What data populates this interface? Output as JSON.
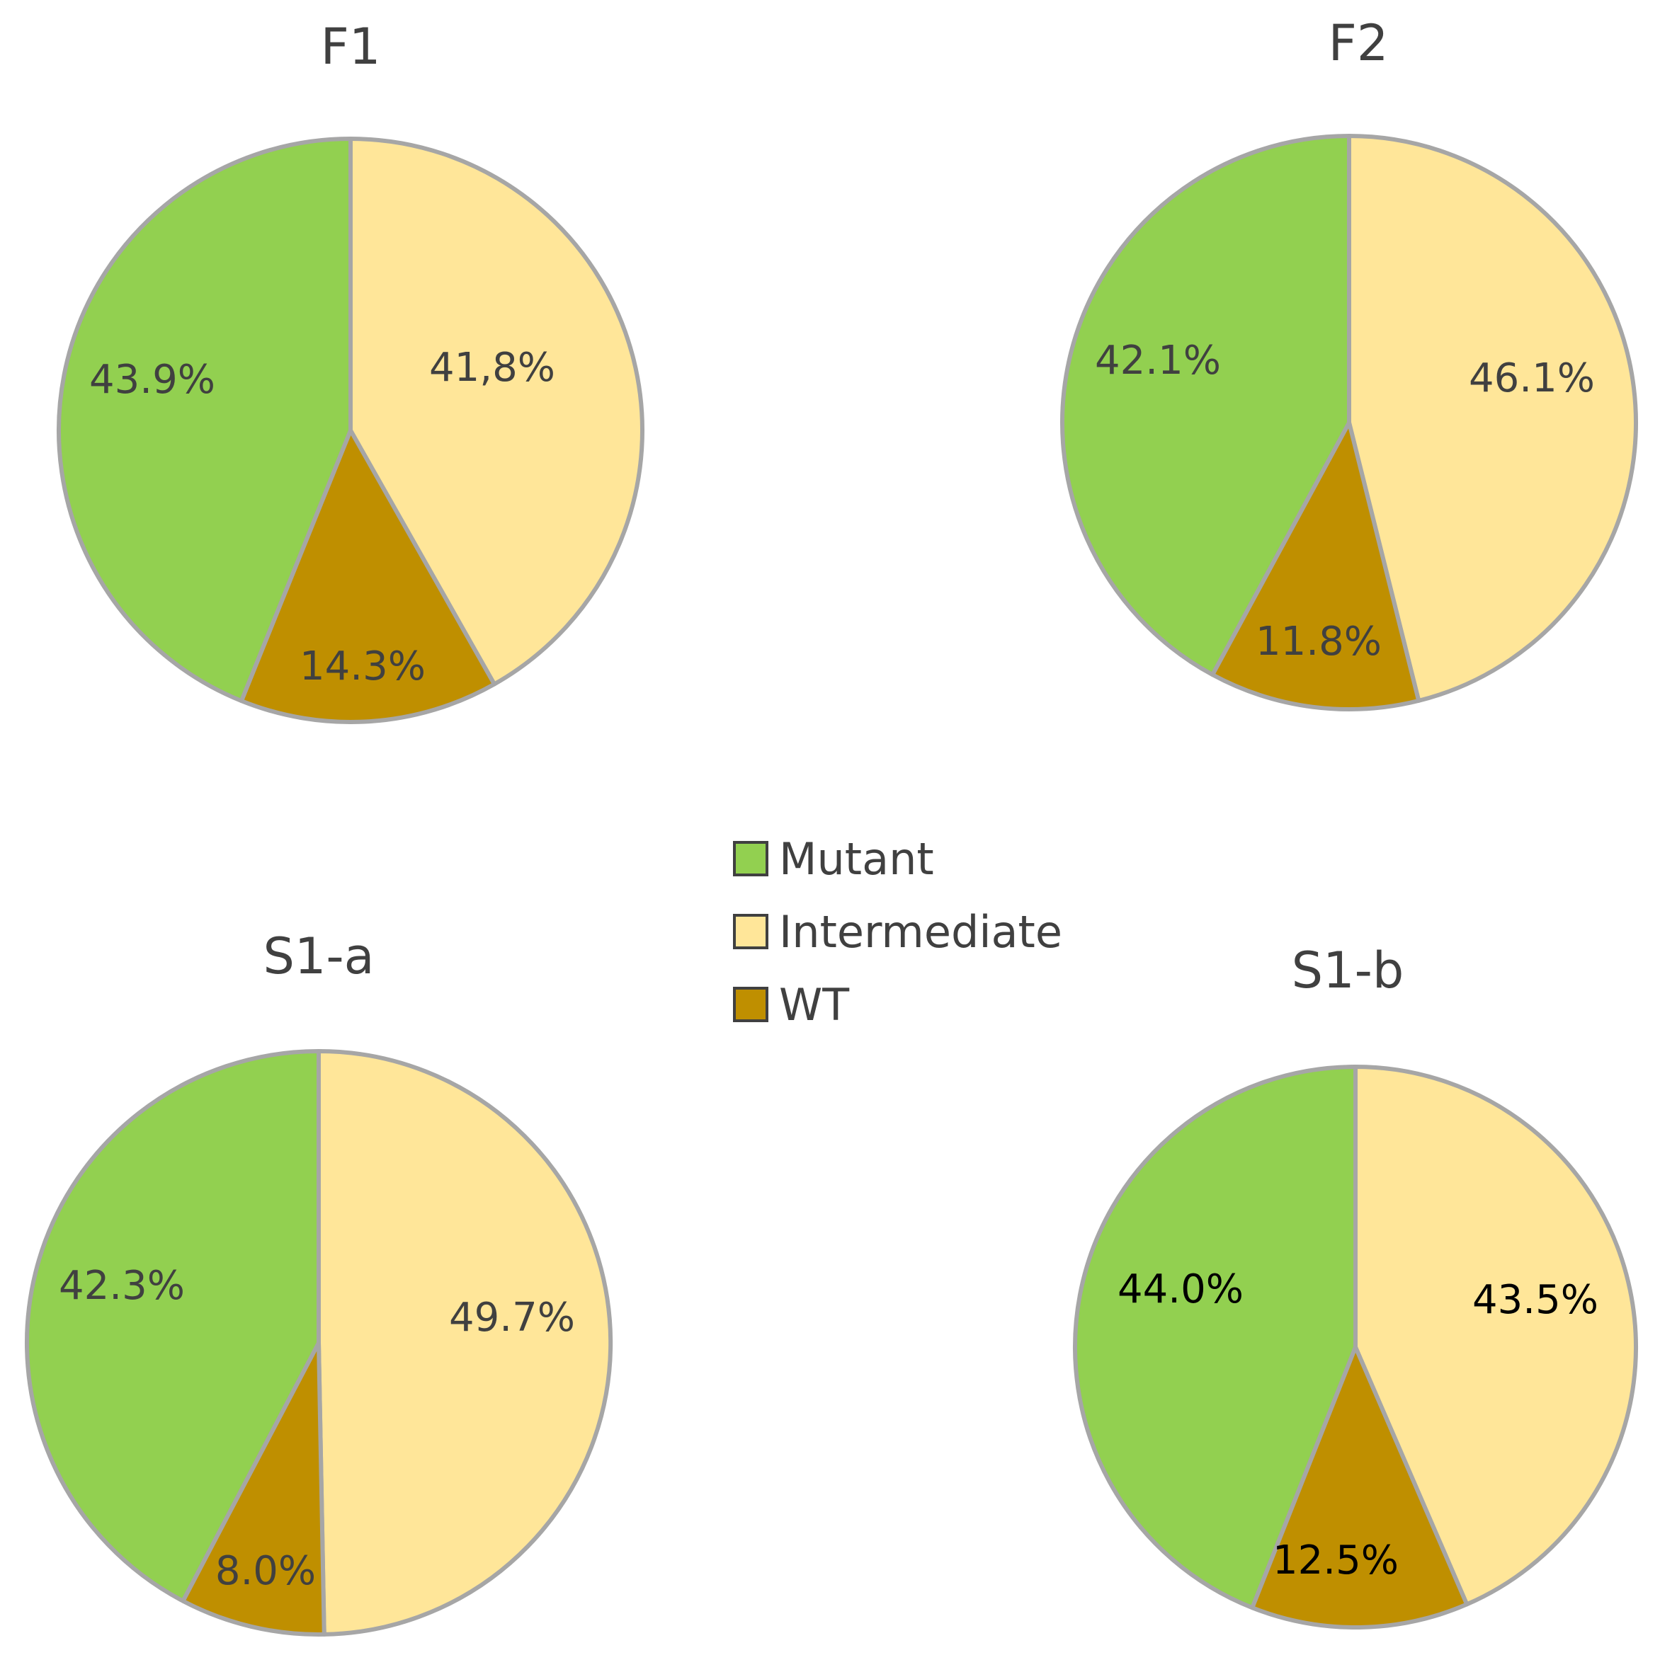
{
  "chart_data": [
    {
      "type": "pie",
      "title": "F1",
      "labels": [
        "Mutant",
        "Intermediate",
        "WT"
      ],
      "values": [
        43.9,
        41.8,
        14.3
      ],
      "value_labels": [
        "43.9%",
        "41,8%",
        "14.3%"
      ]
    },
    {
      "type": "pie",
      "title": "F2",
      "labels": [
        "Mutant",
        "Intermediate",
        "WT"
      ],
      "values": [
        42.1,
        46.1,
        11.8
      ],
      "value_labels": [
        "42.1%",
        "46.1%",
        "11.8%"
      ]
    },
    {
      "type": "pie",
      "title": "S1-a",
      "labels": [
        "Mutant",
        "Intermediate",
        "WT"
      ],
      "values": [
        42.3,
        49.7,
        8.0
      ],
      "value_labels": [
        "42.3%",
        "49.7%",
        "8.0%"
      ]
    },
    {
      "type": "pie",
      "title": "S1-b",
      "labels": [
        "Mutant",
        "Intermediate",
        "WT"
      ],
      "values": [
        44.0,
        43.5,
        12.5
      ],
      "value_labels": [
        "44.0%",
        "43.5%",
        "12.5%"
      ]
    }
  ],
  "legend": {
    "items": [
      {
        "label": "Mutant",
        "color": "#92d050"
      },
      {
        "label": "Intermediate",
        "color": "#ffe699"
      },
      {
        "label": "WT",
        "color": "#bf8f00"
      }
    ]
  },
  "colors": {
    "Mutant": "#92d050",
    "Intermediate": "#ffe699",
    "WT": "#bf8f00",
    "outline": "#a6a6a6"
  }
}
